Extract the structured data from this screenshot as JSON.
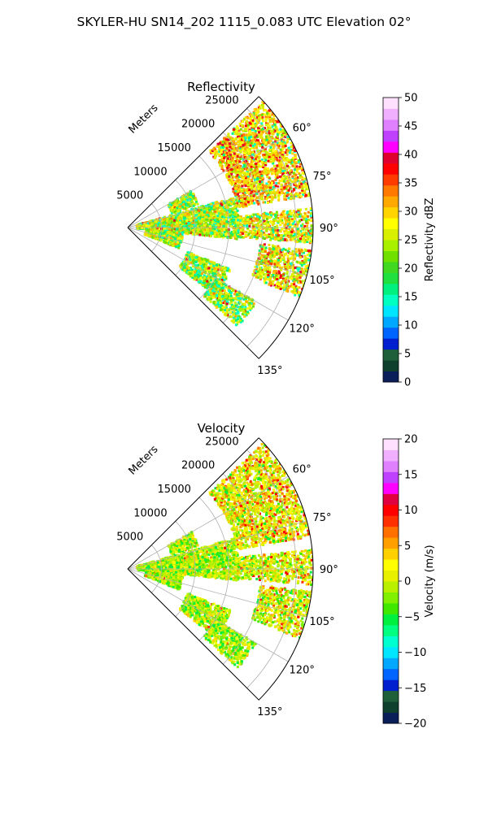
{
  "suptitle": "SKYLER-HU  SN14_202  1115_0.083 UTC Elevation 02°",
  "chart_data": [
    {
      "type": "heatmap",
      "title": "Reflectivity",
      "projection": "polar sector",
      "theta_range_deg": [
        45,
        135
      ],
      "theta_ticks": [
        "60°",
        "75°",
        "90°",
        "105°",
        "120°",
        "135°"
      ],
      "radial_label": "Meters",
      "radial_ticks": [
        "5000",
        "10000",
        "15000",
        "20000",
        "25000"
      ],
      "rmax": 27500,
      "grid": true,
      "colorbar": {
        "label": "Reflectivity dBZ",
        "range": [
          0,
          50
        ],
        "ticks": [
          "0",
          "5",
          "10",
          "15",
          "20",
          "25",
          "30",
          "35",
          "40",
          "45",
          "50"
        ],
        "colors": [
          "#0a1e5a",
          "#0f3f2d",
          "#1f5f3a",
          "#0020d0",
          "#0064ff",
          "#00a8ff",
          "#00e6ff",
          "#00ffc0",
          "#00f080",
          "#20e040",
          "#40d820",
          "#70e000",
          "#a8f000",
          "#d8f000",
          "#ffff00",
          "#ffd400",
          "#ffa800",
          "#ff7800",
          "#ff3c00",
          "#ff0000",
          "#e00030",
          "#ff00ff",
          "#c040ff",
          "#e080ff",
          "#f0b0ff",
          "#ffe0ff"
        ]
      }
    },
    {
      "type": "heatmap",
      "title": "Velocity",
      "projection": "polar sector",
      "theta_range_deg": [
        45,
        135
      ],
      "theta_ticks": [
        "60°",
        "75°",
        "90°",
        "105°",
        "120°",
        "135°"
      ],
      "radial_label": "Meters",
      "radial_ticks": [
        "5000",
        "10000",
        "15000",
        "20000",
        "25000"
      ],
      "rmax": 27500,
      "grid": true,
      "colorbar": {
        "label": "Velocity (m/s)",
        "range": [
          -20,
          20
        ],
        "ticks": [
          "−20",
          "−15",
          "−10",
          "−5",
          "0",
          "5",
          "10",
          "15",
          "20"
        ],
        "colors": [
          "#0a1e5a",
          "#0f3f2d",
          "#1f5f3a",
          "#0020d0",
          "#0064ff",
          "#00a8ff",
          "#00e6ff",
          "#00ffd0",
          "#00ff80",
          "#00f040",
          "#40e800",
          "#80f000",
          "#b8f000",
          "#e8f000",
          "#ffff00",
          "#ffd000",
          "#ffa000",
          "#ff7000",
          "#ff3000",
          "#ff0000",
          "#e00040",
          "#ff00ff",
          "#c040ff",
          "#e080ff",
          "#f0b0ff",
          "#ffe0ff"
        ]
      }
    }
  ]
}
